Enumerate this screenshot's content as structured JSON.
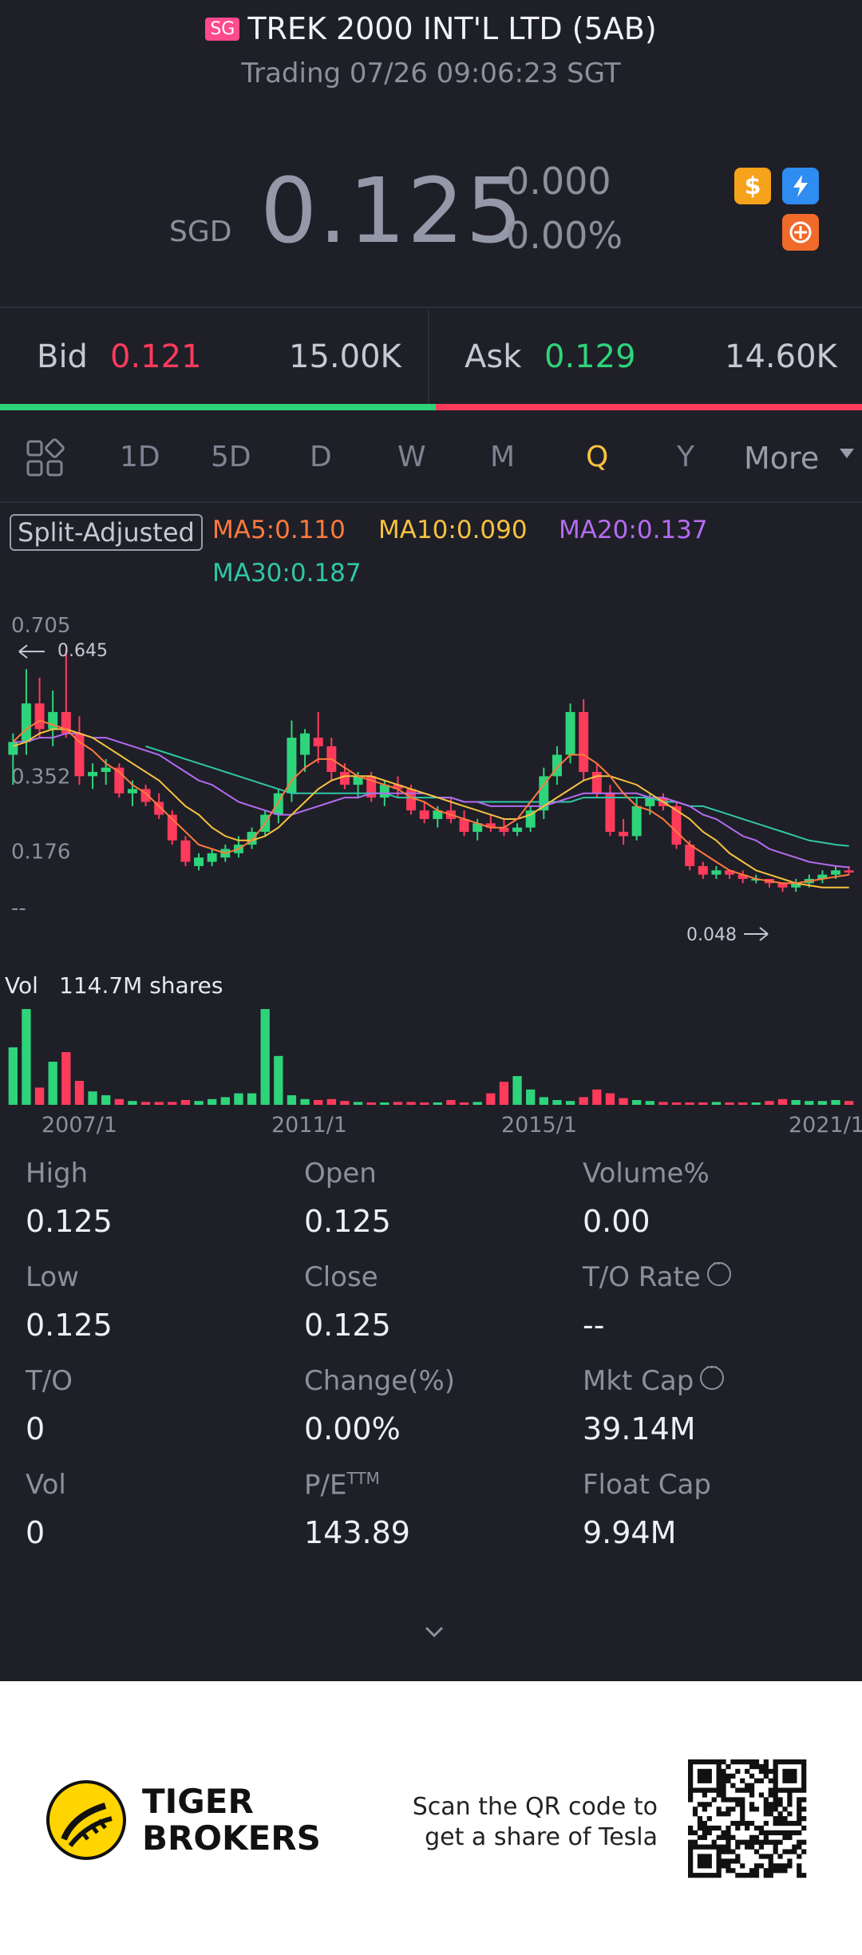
{
  "header": {
    "badge": "SG",
    "title": "TREK 2000 INT'L LTD (5AB)",
    "status": "Trading 07/26 09:06:23 SGT"
  },
  "quote": {
    "currency": "SGD",
    "price": "0.125",
    "change": "0.000",
    "change_pct": "0.00%",
    "icons": [
      "dollar-icon",
      "flash-icon",
      "options-icon"
    ],
    "icon_colors": {
      "dollar": "#f7a21b",
      "flash": "#2f8cf0",
      "options": "#f06a2a"
    }
  },
  "orderbook": {
    "bid_label": "Bid",
    "bid_price": "0.121",
    "bid_size": "15.00K",
    "ask_label": "Ask",
    "ask_price": "0.129",
    "ask_size": "14.60K",
    "bid_share": 0.506
  },
  "tabs": {
    "items": [
      "1D",
      "5D",
      "D",
      "W",
      "M",
      "Q",
      "Y",
      "More"
    ],
    "active": "Q",
    "layout_icon": "grid-icon"
  },
  "legend": {
    "split": "Split-Adjusted",
    "ma5": "MA5:0.110",
    "ma10": "MA10:0.090",
    "ma20": "MA20:0.137",
    "ma30": "MA30:0.187",
    "colors": {
      "ma5": "#ff7a3d",
      "ma10": "#f6c23e",
      "ma20": "#b56cf0",
      "ma30": "#2ec7a6",
      "up": "#2ed47a",
      "down": "#ff3b5c"
    }
  },
  "chart_data": {
    "type": "candlestick",
    "y_ticks": [
      "0.705",
      "0.352",
      "0.176",
      "--"
    ],
    "max_label": "0.645",
    "min_label": "0.048",
    "x_ticks": [
      "2007/1",
      "2011/1",
      "2015/1",
      "2021/1"
    ],
    "volume_label": "Vol",
    "volume_value": "114.7M shares",
    "ylim": [
      0.0,
      0.705
    ],
    "candles": [
      {
        "o": 0.4,
        "h": 0.45,
        "l": 0.33,
        "c": 0.43
      },
      {
        "o": 0.43,
        "h": 0.6,
        "l": 0.4,
        "c": 0.52
      },
      {
        "o": 0.52,
        "h": 0.58,
        "l": 0.44,
        "c": 0.46
      },
      {
        "o": 0.46,
        "h": 0.55,
        "l": 0.42,
        "c": 0.5
      },
      {
        "o": 0.5,
        "h": 0.645,
        "l": 0.44,
        "c": 0.45
      },
      {
        "o": 0.45,
        "h": 0.49,
        "l": 0.33,
        "c": 0.35
      },
      {
        "o": 0.35,
        "h": 0.38,
        "l": 0.32,
        "c": 0.36
      },
      {
        "o": 0.36,
        "h": 0.39,
        "l": 0.33,
        "c": 0.37
      },
      {
        "o": 0.37,
        "h": 0.38,
        "l": 0.3,
        "c": 0.31
      },
      {
        "o": 0.31,
        "h": 0.34,
        "l": 0.28,
        "c": 0.32
      },
      {
        "o": 0.32,
        "h": 0.33,
        "l": 0.28,
        "c": 0.29
      },
      {
        "o": 0.29,
        "h": 0.31,
        "l": 0.25,
        "c": 0.26
      },
      {
        "o": 0.26,
        "h": 0.27,
        "l": 0.19,
        "c": 0.2
      },
      {
        "o": 0.2,
        "h": 0.21,
        "l": 0.14,
        "c": 0.15
      },
      {
        "o": 0.14,
        "h": 0.17,
        "l": 0.13,
        "c": 0.16
      },
      {
        "o": 0.15,
        "h": 0.18,
        "l": 0.14,
        "c": 0.17
      },
      {
        "o": 0.16,
        "h": 0.19,
        "l": 0.15,
        "c": 0.18
      },
      {
        "o": 0.17,
        "h": 0.21,
        "l": 0.16,
        "c": 0.19
      },
      {
        "o": 0.19,
        "h": 0.23,
        "l": 0.18,
        "c": 0.22
      },
      {
        "o": 0.22,
        "h": 0.27,
        "l": 0.21,
        "c": 0.26
      },
      {
        "o": 0.26,
        "h": 0.32,
        "l": 0.24,
        "c": 0.31
      },
      {
        "o": 0.31,
        "h": 0.48,
        "l": 0.29,
        "c": 0.44
      },
      {
        "o": 0.4,
        "h": 0.46,
        "l": 0.36,
        "c": 0.45
      },
      {
        "o": 0.44,
        "h": 0.5,
        "l": 0.38,
        "c": 0.42
      },
      {
        "o": 0.42,
        "h": 0.44,
        "l": 0.34,
        "c": 0.36
      },
      {
        "o": 0.36,
        "h": 0.38,
        "l": 0.32,
        "c": 0.33
      },
      {
        "o": 0.33,
        "h": 0.36,
        "l": 0.3,
        "c": 0.35
      },
      {
        "o": 0.35,
        "h": 0.36,
        "l": 0.29,
        "c": 0.3
      },
      {
        "o": 0.3,
        "h": 0.34,
        "l": 0.28,
        "c": 0.33
      },
      {
        "o": 0.33,
        "h": 0.35,
        "l": 0.3,
        "c": 0.32
      },
      {
        "o": 0.32,
        "h": 0.33,
        "l": 0.26,
        "c": 0.27
      },
      {
        "o": 0.27,
        "h": 0.29,
        "l": 0.24,
        "c": 0.25
      },
      {
        "o": 0.25,
        "h": 0.28,
        "l": 0.23,
        "c": 0.27
      },
      {
        "o": 0.27,
        "h": 0.3,
        "l": 0.24,
        "c": 0.25
      },
      {
        "o": 0.25,
        "h": 0.27,
        "l": 0.21,
        "c": 0.22
      },
      {
        "o": 0.22,
        "h": 0.25,
        "l": 0.2,
        "c": 0.24
      },
      {
        "o": 0.24,
        "h": 0.26,
        "l": 0.22,
        "c": 0.23
      },
      {
        "o": 0.23,
        "h": 0.25,
        "l": 0.21,
        "c": 0.22
      },
      {
        "o": 0.22,
        "h": 0.24,
        "l": 0.21,
        "c": 0.23
      },
      {
        "o": 0.23,
        "h": 0.28,
        "l": 0.22,
        "c": 0.27
      },
      {
        "o": 0.27,
        "h": 0.37,
        "l": 0.25,
        "c": 0.35
      },
      {
        "o": 0.35,
        "h": 0.42,
        "l": 0.33,
        "c": 0.4
      },
      {
        "o": 0.4,
        "h": 0.52,
        "l": 0.38,
        "c": 0.5
      },
      {
        "o": 0.5,
        "h": 0.53,
        "l": 0.34,
        "c": 0.36
      },
      {
        "o": 0.36,
        "h": 0.38,
        "l": 0.3,
        "c": 0.31
      },
      {
        "o": 0.31,
        "h": 0.33,
        "l": 0.21,
        "c": 0.22
      },
      {
        "o": 0.22,
        "h": 0.25,
        "l": 0.19,
        "c": 0.21
      },
      {
        "o": 0.21,
        "h": 0.3,
        "l": 0.2,
        "c": 0.28
      },
      {
        "o": 0.28,
        "h": 0.31,
        "l": 0.26,
        "c": 0.3
      },
      {
        "o": 0.3,
        "h": 0.31,
        "l": 0.27,
        "c": 0.28
      },
      {
        "o": 0.28,
        "h": 0.29,
        "l": 0.18,
        "c": 0.19
      },
      {
        "o": 0.19,
        "h": 0.2,
        "l": 0.13,
        "c": 0.14
      },
      {
        "o": 0.14,
        "h": 0.15,
        "l": 0.11,
        "c": 0.12
      },
      {
        "o": 0.12,
        "h": 0.14,
        "l": 0.11,
        "c": 0.13
      },
      {
        "o": 0.13,
        "h": 0.13,
        "l": 0.11,
        "c": 0.12
      },
      {
        "o": 0.12,
        "h": 0.13,
        "l": 0.1,
        "c": 0.11
      },
      {
        "o": 0.11,
        "h": 0.12,
        "l": 0.1,
        "c": 0.11
      },
      {
        "o": 0.11,
        "h": 0.11,
        "l": 0.09,
        "c": 0.1
      },
      {
        "o": 0.1,
        "h": 0.1,
        "l": 0.08,
        "c": 0.09
      },
      {
        "o": 0.09,
        "h": 0.11,
        "l": 0.08,
        "c": 0.1
      },
      {
        "o": 0.1,
        "h": 0.12,
        "l": 0.09,
        "c": 0.11
      },
      {
        "o": 0.11,
        "h": 0.13,
        "l": 0.1,
        "c": 0.12
      },
      {
        "o": 0.12,
        "h": 0.14,
        "l": 0.11,
        "c": 0.13
      },
      {
        "o": 0.13,
        "h": 0.14,
        "l": 0.12,
        "c": 0.125
      }
    ],
    "volumes": [
      0.6,
      1.0,
      0.18,
      0.45,
      0.55,
      0.25,
      0.14,
      0.1,
      0.06,
      0.04,
      0.03,
      0.03,
      0.03,
      0.05,
      0.04,
      0.06,
      0.08,
      0.12,
      0.12,
      1.0,
      0.51,
      0.1,
      0.06,
      0.05,
      0.06,
      0.04,
      0.03,
      0.02,
      0.02,
      0.03,
      0.03,
      0.02,
      0.02,
      0.05,
      0.02,
      0.03,
      0.12,
      0.24,
      0.3,
      0.16,
      0.08,
      0.05,
      0.04,
      0.08,
      0.16,
      0.12,
      0.07,
      0.05,
      0.04,
      0.03,
      0.02,
      0.02,
      0.02,
      0.03,
      0.02,
      0.02,
      0.02,
      0.04,
      0.06,
      0.05,
      0.04,
      0.04,
      0.05,
      0.04
    ],
    "ma5": [
      0.43,
      0.46,
      0.48,
      0.47,
      0.46,
      0.43,
      0.41,
      0.38,
      0.36,
      0.33,
      0.31,
      0.28,
      0.25,
      0.22,
      0.19,
      0.18,
      0.17,
      0.18,
      0.2,
      0.24,
      0.29,
      0.34,
      0.37,
      0.39,
      0.39,
      0.37,
      0.35,
      0.34,
      0.33,
      0.32,
      0.3,
      0.29,
      0.27,
      0.26,
      0.25,
      0.24,
      0.23,
      0.23,
      0.25,
      0.29,
      0.33,
      0.37,
      0.4,
      0.4,
      0.38,
      0.35,
      0.31,
      0.28,
      0.27,
      0.25,
      0.22,
      0.19,
      0.17,
      0.15,
      0.13,
      0.12,
      0.11,
      0.105,
      0.1,
      0.1,
      0.105,
      0.11,
      0.115,
      0.12
    ],
    "ma10": [
      0.42,
      0.43,
      0.45,
      0.46,
      0.46,
      0.45,
      0.44,
      0.42,
      0.4,
      0.38,
      0.36,
      0.34,
      0.31,
      0.28,
      0.26,
      0.23,
      0.21,
      0.2,
      0.2,
      0.21,
      0.23,
      0.26,
      0.29,
      0.32,
      0.34,
      0.35,
      0.35,
      0.35,
      0.34,
      0.33,
      0.32,
      0.31,
      0.3,
      0.29,
      0.28,
      0.27,
      0.26,
      0.25,
      0.25,
      0.26,
      0.28,
      0.3,
      0.32,
      0.34,
      0.35,
      0.35,
      0.34,
      0.33,
      0.31,
      0.29,
      0.27,
      0.25,
      0.22,
      0.2,
      0.17,
      0.15,
      0.13,
      0.12,
      0.11,
      0.1,
      0.095,
      0.09,
      0.09,
      0.09
    ],
    "ma20": [
      0.43,
      0.43,
      0.44,
      0.44,
      0.45,
      0.45,
      0.44,
      0.44,
      0.43,
      0.42,
      0.41,
      0.4,
      0.38,
      0.36,
      0.34,
      0.33,
      0.31,
      0.29,
      0.28,
      0.27,
      0.26,
      0.26,
      0.27,
      0.28,
      0.29,
      0.3,
      0.3,
      0.31,
      0.31,
      0.31,
      0.31,
      0.31,
      0.3,
      0.3,
      0.29,
      0.29,
      0.28,
      0.28,
      0.28,
      0.28,
      0.28,
      0.29,
      0.3,
      0.31,
      0.31,
      0.31,
      0.31,
      0.31,
      0.3,
      0.3,
      0.29,
      0.28,
      0.26,
      0.25,
      0.23,
      0.21,
      0.2,
      0.18,
      0.17,
      0.16,
      0.15,
      0.145,
      0.14,
      0.137
    ],
    "ma30": [
      null,
      null,
      null,
      null,
      null,
      null,
      null,
      null,
      null,
      null,
      0.42,
      0.41,
      0.4,
      0.39,
      0.38,
      0.37,
      0.36,
      0.35,
      0.34,
      0.33,
      0.32,
      0.31,
      0.31,
      0.31,
      0.31,
      0.31,
      0.31,
      0.31,
      0.31,
      0.3,
      0.3,
      0.3,
      0.3,
      0.3,
      0.29,
      0.29,
      0.29,
      0.29,
      0.29,
      0.29,
      0.29,
      0.29,
      0.29,
      0.3,
      0.3,
      0.3,
      0.3,
      0.3,
      0.3,
      0.29,
      0.29,
      0.28,
      0.28,
      0.27,
      0.26,
      0.25,
      0.24,
      0.23,
      0.22,
      0.21,
      0.2,
      0.195,
      0.19,
      0.187
    ]
  },
  "stats": [
    {
      "label": "High",
      "value": "0.125",
      "info": false
    },
    {
      "label": "Open",
      "value": "0.125",
      "info": false
    },
    {
      "label": "Volume%",
      "value": "0.00",
      "info": false
    },
    {
      "label": "Low",
      "value": "0.125",
      "info": false
    },
    {
      "label": "Close",
      "value": "0.125",
      "info": false
    },
    {
      "label": "T/O Rate",
      "value": "--",
      "info": true
    },
    {
      "label": "T/O",
      "value": "0",
      "info": false
    },
    {
      "label": "Change(%)",
      "value": "0.00%",
      "info": false
    },
    {
      "label": "Mkt Cap",
      "value": "39.14M",
      "info": true
    },
    {
      "label": "Vol",
      "value": "0",
      "info": false
    },
    {
      "label": "P/E",
      "label_sup": "TTM",
      "value": "143.89",
      "info": false
    },
    {
      "label": "Float Cap",
      "value": "9.94M",
      "info": false
    }
  ],
  "footer": {
    "brand_line1": "TIGER",
    "brand_line2": "BROKERS",
    "scan_line1": "Scan the QR code to",
    "scan_line2": "get a share of Tesla"
  }
}
